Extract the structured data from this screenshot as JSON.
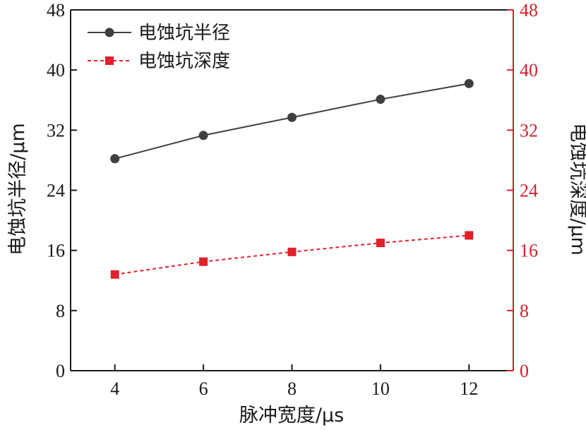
{
  "chart_data": {
    "type": "line",
    "x": [
      4,
      6,
      8,
      10,
      12
    ],
    "x_ticks": [
      "4",
      "6",
      "8",
      "10",
      "12"
    ],
    "xlim": [
      3,
      13
    ],
    "xlabel": "脉冲宽度/μs",
    "ylabel_left": "电蚀坑半径/μm",
    "ylabel_right": "电蚀坑深度/μm",
    "ylim_left": [
      0,
      48
    ],
    "ylim_right": [
      0,
      48
    ],
    "y_ticks_left": [
      "0",
      "8",
      "16",
      "24",
      "32",
      "40",
      "48"
    ],
    "y_ticks_right": [
      "0",
      "8",
      "16",
      "24",
      "32",
      "40",
      "48"
    ],
    "grid": false,
    "legend_position": "top-left",
    "series": [
      {
        "name": "电蚀坑半径",
        "axis": "left",
        "values": [
          28.2,
          31.3,
          33.7,
          36.1,
          38.2
        ],
        "color": "#3f3f3f",
        "marker": "circle",
        "line_style": "solid"
      },
      {
        "name": "电蚀坑深度",
        "axis": "right",
        "values": [
          12.8,
          14.5,
          15.8,
          17.0,
          18.0
        ],
        "color": "#e0202a",
        "marker": "square",
        "line_style": "dashed"
      }
    ],
    "right_axis_color": "#d4202a"
  }
}
